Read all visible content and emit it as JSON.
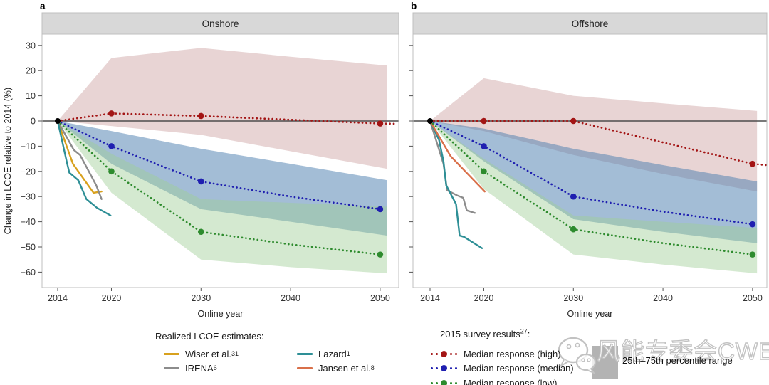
{
  "header": {
    "panel_a_label": "a",
    "panel_b_label": "b"
  },
  "axis": {
    "ylabel": "Change in LCOE relative to 2014 (%)",
    "xlabel": "Online year",
    "yticks": [
      30,
      20,
      10,
      0,
      -10,
      -20,
      -30,
      -40,
      -50,
      -60
    ],
    "xticks": [
      2014,
      2020,
      2030,
      2040,
      2050
    ]
  },
  "chart_data": [
    {
      "type": "line",
      "title": "Onshore",
      "xlabel": "Online year",
      "ylabel": "Change in LCOE relative to 2014 (%)",
      "xlim": [
        2012.3,
        2052
      ],
      "ylim": [
        -66,
        34
      ],
      "grid": false,
      "marker_years": [
        2020,
        2030,
        2050
      ],
      "origin_point": {
        "x": 2014,
        "y": 0
      },
      "series": [
        {
          "name": "Median response (high)",
          "color": "#a31515",
          "x": [
            2014,
            2020,
            2030,
            2040,
            2050,
            2051.8
          ],
          "y": [
            0,
            3,
            2,
            0.5,
            -1,
            -1.1
          ],
          "band": {
            "x": [
              2014,
              2020,
              2030,
              2040,
              2050.8
            ],
            "upper": [
              0,
              25,
              29,
              25.5,
              22
            ],
            "lower": [
              0,
              -2,
              -5.5,
              -12,
              -19
            ],
            "color": "#c99999",
            "opacity": 0.42,
            "label": "25th–75th percentile range"
          }
        },
        {
          "name": "Median response (median)",
          "color": "#1f1fb0",
          "x": [
            2014,
            2020,
            2030,
            2040,
            2050
          ],
          "y": [
            0,
            -10,
            -24,
            -30,
            -35
          ],
          "band": {
            "x": [
              2014,
              2020,
              2030,
              2040,
              2050.8
            ],
            "upper": [
              0,
              -4,
              -11,
              -17,
              -23.5
            ],
            "lower": [
              0,
              -17,
              -35,
              -40,
              -45.5
            ],
            "color": "#4f81b0",
            "opacity": 0.52,
            "label": "25th–75th percentile range"
          }
        },
        {
          "name": "Median response (low)",
          "color": "#2e8b2e",
          "x": [
            2014,
            2020,
            2030,
            2040,
            2050
          ],
          "y": [
            0,
            -20,
            -44,
            -49,
            -53
          ],
          "band": {
            "x": [
              2014,
              2020,
              2030,
              2040,
              2050.8
            ],
            "upper": [
              0,
              -13,
              -31,
              -32.5,
              -34
            ],
            "lower": [
              0,
              -28.5,
              -55,
              -58,
              -60.5
            ],
            "color": "#9fce97",
            "opacity": 0.45,
            "label": "25th–75th percentile range"
          }
        }
      ],
      "realized": [
        {
          "name": "Wiser et al.",
          "color": "#d8a11e",
          "x": [
            2014,
            2015,
            2015.7,
            2016.7,
            2018,
            2018.9
          ],
          "y": [
            0,
            -10,
            -17,
            -22,
            -28.5,
            -28
          ]
        },
        {
          "name": "IRENA",
          "color": "#8c8c8c",
          "x": [
            2014,
            2015.8,
            2016.5,
            2018.3,
            2018.9
          ],
          "y": [
            0,
            -11.5,
            -13.5,
            -25.5,
            -31
          ]
        },
        {
          "name": "Lazard",
          "color": "#2e8f96",
          "x": [
            2014,
            2015,
            2015.3,
            2016.3,
            2017.2,
            2018.4,
            2019.9
          ],
          "y": [
            0,
            -16,
            -20.5,
            -23.5,
            -31,
            -34.5,
            -37.5
          ]
        }
      ]
    },
    {
      "type": "line",
      "title": "Offshore",
      "xlabel": "Online year",
      "ylabel": "Change in LCOE relative to 2014 (%)",
      "xlim": [
        2012.3,
        2052
      ],
      "ylim": [
        -66,
        34
      ],
      "grid": false,
      "marker_years": [
        2020,
        2030,
        2050
      ],
      "origin_point": {
        "x": 2014,
        "y": 0
      },
      "series": [
        {
          "name": "Median response (high)",
          "color": "#a31515",
          "x": [
            2014,
            2020,
            2030,
            2040,
            2050,
            2051.5
          ],
          "y": [
            0,
            0,
            0,
            -8.5,
            -17,
            -17.5
          ],
          "band": {
            "x": [
              2014,
              2020,
              2030,
              2040,
              2050.5
            ],
            "upper": [
              0,
              17,
              10,
              7,
              4
            ],
            "lower": [
              0,
              -4,
              -13.5,
              -21,
              -28
            ],
            "color": "#c99999",
            "opacity": 0.42,
            "label": "25th–75th percentile range"
          }
        },
        {
          "name": "Median response (median)",
          "color": "#1f1fb0",
          "x": [
            2014,
            2020,
            2030,
            2040,
            2050
          ],
          "y": [
            0,
            -10,
            -30,
            -36,
            -41
          ],
          "band": {
            "x": [
              2014,
              2020,
              2030,
              2040,
              2050.5
            ],
            "upper": [
              0,
              -3,
              -11,
              -17.5,
              -24
            ],
            "lower": [
              0,
              -16,
              -39,
              -44,
              -48.5
            ],
            "color": "#4f81b0",
            "opacity": 0.52,
            "label": "25th–75th percentile range"
          }
        },
        {
          "name": "Median response (low)",
          "color": "#2e8b2e",
          "x": [
            2014,
            2020,
            2030,
            2040,
            2050
          ],
          "y": [
            0,
            -20,
            -43,
            -48.5,
            -53
          ],
          "band": {
            "x": [
              2014,
              2020,
              2030,
              2040,
              2050.5
            ],
            "upper": [
              0,
              -15,
              -37.5,
              -40,
              -42.5
            ],
            "lower": [
              0,
              -27,
              -53,
              -57,
              -60.5
            ],
            "color": "#9fce97",
            "opacity": 0.45,
            "label": "25th–75th percentile range"
          }
        }
      ],
      "realized": [
        {
          "name": "IRENA",
          "color": "#8c8c8c",
          "x": [
            2014,
            2015.5,
            2015.9,
            2017,
            2017.7,
            2018.1,
            2019
          ],
          "y": [
            0,
            -17,
            -27.5,
            -29.5,
            -30.5,
            -35.5,
            -36.5
          ]
        },
        {
          "name": "Lazard",
          "color": "#2e8f96",
          "x": [
            2014,
            2015,
            2015.5,
            2015.8,
            2016.9,
            2017.3,
            2017.8,
            2019.8
          ],
          "y": [
            0,
            -7.5,
            -16,
            -25.5,
            -33,
            -45.5,
            -46,
            -50.5
          ]
        },
        {
          "name": "Jansen et al.",
          "color": "#d9704a",
          "x": [
            2014,
            2016.3,
            2020.1
          ],
          "y": [
            0,
            -14,
            -28
          ]
        }
      ]
    }
  ],
  "legend": {
    "realized_title": "Realized LCOE estimates:",
    "realized_items": [
      {
        "label": "Wiser et al.",
        "sup": "31",
        "color": "#d8a11e"
      },
      {
        "label": "IRENA",
        "sup": "6",
        "color": "#8c8c8c"
      },
      {
        "label": "Lazard",
        "sup": "1",
        "color": "#2e8f96"
      },
      {
        "label": "Jansen et al.",
        "sup": "8",
        "color": "#d9704a"
      }
    ],
    "survey_title_pre": "2015 survey results",
    "survey_title_sup": "27",
    "survey_title_post": ":",
    "survey_items": [
      {
        "label": "Median response (high)",
        "color": "#a31515"
      },
      {
        "label": "Median response (median)",
        "color": "#1f1fb0"
      },
      {
        "label": "Median response (low)",
        "color": "#2e8b2e"
      }
    ],
    "range_label": "25th–75th percentile range",
    "range_color": "#b3b3b3"
  },
  "watermark": {
    "text": "风能专委会CWEA"
  }
}
